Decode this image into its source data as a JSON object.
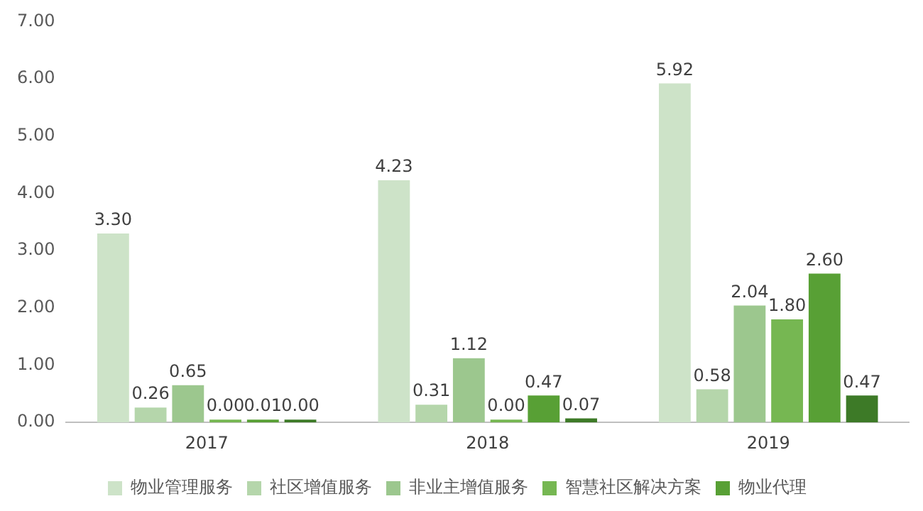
{
  "chart_data": {
    "type": "bar",
    "categories": [
      "2017",
      "2018",
      "2019"
    ],
    "series": [
      {
        "name": "物业管理服务",
        "color": "#cde3c8",
        "values": [
          3.3,
          4.23,
          5.92
        ],
        "value_labels": [
          "3.30",
          "4.23",
          "5.92"
        ]
      },
      {
        "name": "社区增值服务",
        "color": "#b5d6ab",
        "values": [
          0.26,
          0.31,
          0.58
        ],
        "value_labels": [
          "0.26",
          "0.31",
          "0.58"
        ]
      },
      {
        "name": "非业主增值服务",
        "color": "#9cc78e",
        "values": [
          0.65,
          1.12,
          2.04
        ],
        "value_labels": [
          "0.65",
          "1.12",
          "2.04"
        ]
      },
      {
        "name": "智慧社区解决方案",
        "color": "#76b752",
        "values": [
          0.0,
          0.0,
          1.8
        ],
        "value_labels": [
          "0.00",
          "0.00",
          "1.80"
        ]
      },
      {
        "name": "物业代理",
        "color": "#58a035",
        "values": [
          0.01,
          0.47,
          2.6
        ],
        "value_labels": [
          "0.01",
          "0.47",
          "2.60"
        ]
      },
      {
        "color": "#3d7a27",
        "values": [
          0.0,
          0.07,
          0.47
        ],
        "value_labels": [
          "0.00",
          "0.07",
          "0.47"
        ]
      }
    ],
    "ylim": [
      0,
      7
    ],
    "yticks": [
      {
        "value": 0,
        "label": "0.00"
      },
      {
        "value": 1,
        "label": "1.00"
      },
      {
        "value": 2,
        "label": "2.00"
      },
      {
        "value": 3,
        "label": "3.00"
      },
      {
        "value": 4,
        "label": "4.00"
      },
      {
        "value": 5,
        "label": "5.00"
      },
      {
        "value": 6,
        "label": "6.00"
      },
      {
        "value": 7,
        "label": "7.00"
      }
    ],
    "grid": false,
    "legend": "bottom"
  }
}
